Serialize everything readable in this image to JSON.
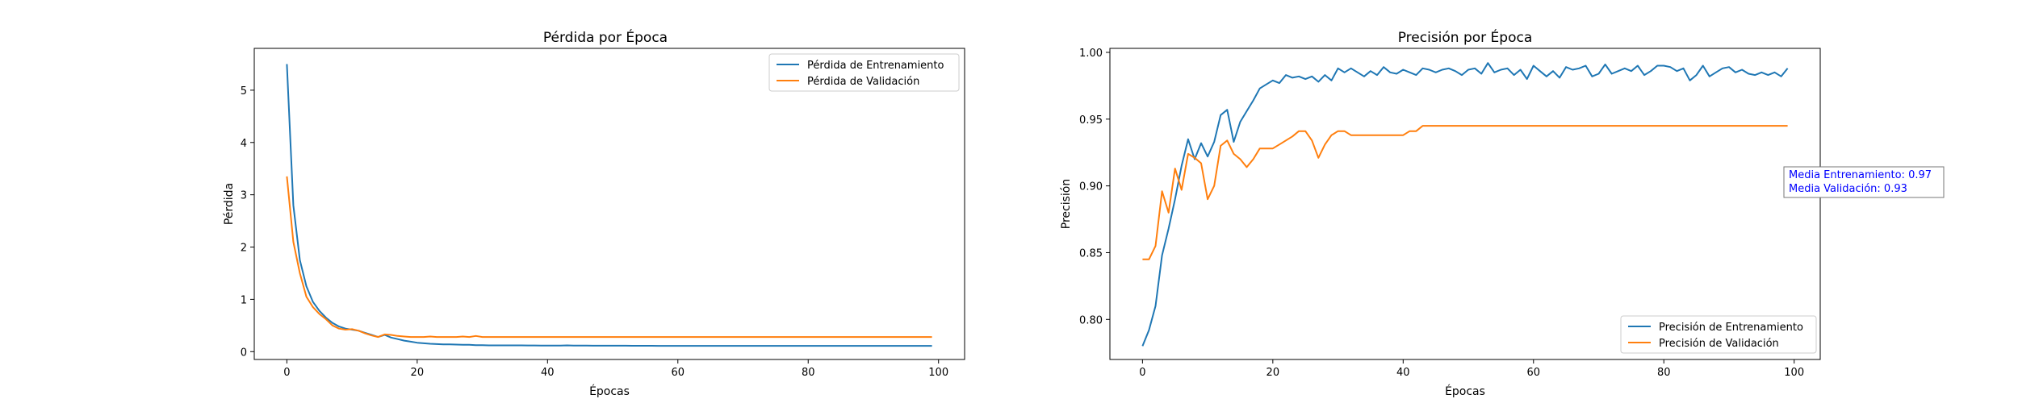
{
  "chart_data": [
    {
      "type": "line",
      "title": "Pérdida por Época",
      "xlabel": "Épocas",
      "ylabel": "Pérdida",
      "xlim": [
        -5,
        104
      ],
      "ylim": [
        -0.15,
        5.8
      ],
      "xticks": [
        0,
        20,
        40,
        60,
        80,
        100
      ],
      "yticks": [
        0,
        1,
        2,
        3,
        4,
        5
      ],
      "legend_position": "top-right",
      "grid": false,
      "x": [
        0,
        1,
        2,
        3,
        4,
        5,
        6,
        7,
        8,
        9,
        10,
        11,
        12,
        13,
        14,
        15,
        16,
        17,
        18,
        19,
        20,
        21,
        22,
        23,
        24,
        25,
        26,
        27,
        28,
        29,
        30,
        31,
        32,
        33,
        34,
        35,
        36,
        37,
        38,
        39,
        40,
        41,
        42,
        43,
        44,
        45,
        46,
        47,
        48,
        49,
        50,
        51,
        52,
        53,
        54,
        55,
        56,
        57,
        58,
        59,
        60,
        61,
        62,
        63,
        64,
        65,
        66,
        67,
        68,
        69,
        70,
        71,
        72,
        73,
        74,
        75,
        76,
        77,
        78,
        79,
        80,
        81,
        82,
        83,
        84,
        85,
        86,
        87,
        88,
        89,
        90,
        91,
        92,
        93,
        94,
        95,
        96,
        97,
        98,
        99
      ],
      "series": [
        {
          "name": "Pérdida de Entrenamiento",
          "color": "#1f77b4",
          "values": [
            5.5,
            2.8,
            1.75,
            1.25,
            0.95,
            0.78,
            0.65,
            0.55,
            0.48,
            0.44,
            0.42,
            0.4,
            0.36,
            0.32,
            0.28,
            0.32,
            0.27,
            0.24,
            0.21,
            0.19,
            0.17,
            0.16,
            0.15,
            0.145,
            0.14,
            0.14,
            0.135,
            0.13,
            0.13,
            0.125,
            0.125,
            0.12,
            0.12,
            0.12,
            0.12,
            0.12,
            0.12,
            0.118,
            0.118,
            0.117,
            0.117,
            0.116,
            0.115,
            0.12,
            0.115,
            0.115,
            0.115,
            0.114,
            0.114,
            0.114,
            0.113,
            0.113,
            0.113,
            0.112,
            0.112,
            0.112,
            0.112,
            0.111,
            0.111,
            0.11,
            0.11,
            0.11,
            0.11,
            0.11,
            0.11,
            0.11,
            0.11,
            0.11,
            0.11,
            0.11,
            0.11,
            0.11,
            0.11,
            0.11,
            0.11,
            0.11,
            0.11,
            0.11,
            0.11,
            0.11,
            0.11,
            0.11,
            0.11,
            0.11,
            0.11,
            0.11,
            0.11,
            0.11,
            0.11,
            0.11,
            0.11,
            0.11,
            0.11,
            0.11,
            0.11,
            0.11,
            0.11,
            0.11,
            0.11,
            0.11
          ]
        },
        {
          "name": "Pérdida de Validación",
          "color": "#ff7f0e",
          "values": [
            3.35,
            2.1,
            1.5,
            1.05,
            0.85,
            0.72,
            0.62,
            0.5,
            0.44,
            0.42,
            0.43,
            0.4,
            0.35,
            0.31,
            0.28,
            0.33,
            0.32,
            0.3,
            0.29,
            0.28,
            0.28,
            0.28,
            0.29,
            0.28,
            0.28,
            0.28,
            0.28,
            0.29,
            0.28,
            0.3,
            0.28,
            0.28,
            0.28,
            0.28,
            0.28,
            0.28,
            0.28,
            0.28,
            0.28,
            0.28,
            0.28,
            0.28,
            0.28,
            0.28,
            0.28,
            0.28,
            0.28,
            0.28,
            0.28,
            0.28,
            0.28,
            0.28,
            0.28,
            0.28,
            0.28,
            0.28,
            0.28,
            0.28,
            0.28,
            0.28,
            0.28,
            0.28,
            0.28,
            0.28,
            0.28,
            0.28,
            0.28,
            0.28,
            0.28,
            0.28,
            0.28,
            0.28,
            0.28,
            0.28,
            0.28,
            0.28,
            0.28,
            0.28,
            0.28,
            0.28,
            0.28,
            0.28,
            0.28,
            0.28,
            0.28,
            0.28,
            0.28,
            0.28,
            0.28,
            0.28,
            0.28,
            0.28,
            0.28,
            0.28,
            0.28,
            0.28,
            0.28,
            0.28,
            0.28,
            0.28
          ]
        }
      ]
    },
    {
      "type": "line",
      "title": "Precisión por Época",
      "xlabel": "Épocas",
      "ylabel": "Precisión",
      "xlim": [
        -5,
        104
      ],
      "ylim": [
        0.77,
        1.003
      ],
      "xticks": [
        0,
        20,
        40,
        60,
        80,
        100
      ],
      "yticks": [
        0.8,
        0.85,
        0.9,
        0.95,
        1.0
      ],
      "ytick_labels": [
        "0.80",
        "0.85",
        "0.90",
        "0.95",
        "1.00"
      ],
      "legend_position": "bottom-right",
      "grid": false,
      "x": [
        0,
        1,
        2,
        3,
        4,
        5,
        6,
        7,
        8,
        9,
        10,
        11,
        12,
        13,
        14,
        15,
        16,
        17,
        18,
        19,
        20,
        21,
        22,
        23,
        24,
        25,
        26,
        27,
        28,
        29,
        30,
        31,
        32,
        33,
        34,
        35,
        36,
        37,
        38,
        39,
        40,
        41,
        42,
        43,
        44,
        45,
        46,
        47,
        48,
        49,
        50,
        51,
        52,
        53,
        54,
        55,
        56,
        57,
        58,
        59,
        60,
        61,
        62,
        63,
        64,
        65,
        66,
        67,
        68,
        69,
        70,
        71,
        72,
        73,
        74,
        75,
        76,
        77,
        78,
        79,
        80,
        81,
        82,
        83,
        84,
        85,
        86,
        87,
        88,
        89,
        90,
        91,
        92,
        93,
        94,
        95,
        96,
        97,
        98,
        99
      ],
      "series": [
        {
          "name": "Precisión de Entrenamiento",
          "color": "#1f77b4",
          "values": [
            0.78,
            0.792,
            0.81,
            0.848,
            0.868,
            0.89,
            0.915,
            0.935,
            0.92,
            0.932,
            0.922,
            0.933,
            0.953,
            0.957,
            0.933,
            0.948,
            0.956,
            0.964,
            0.973,
            0.976,
            0.979,
            0.977,
            0.983,
            0.981,
            0.982,
            0.98,
            0.982,
            0.978,
            0.983,
            0.979,
            0.988,
            0.985,
            0.988,
            0.985,
            0.982,
            0.986,
            0.983,
            0.989,
            0.985,
            0.984,
            0.987,
            0.985,
            0.983,
            0.988,
            0.987,
            0.985,
            0.987,
            0.988,
            0.986,
            0.983,
            0.987,
            0.988,
            0.984,
            0.992,
            0.985,
            0.987,
            0.988,
            0.983,
            0.987,
            0.98,
            0.99,
            0.986,
            0.982,
            0.986,
            0.981,
            0.989,
            0.987,
            0.988,
            0.99,
            0.982,
            0.984,
            0.991,
            0.984,
            0.986,
            0.988,
            0.986,
            0.99,
            0.983,
            0.986,
            0.99,
            0.99,
            0.989,
            0.986,
            0.988,
            0.979,
            0.983,
            0.99,
            0.982,
            0.985,
            0.988,
            0.989,
            0.985,
            0.987,
            0.984,
            0.983,
            0.985,
            0.983,
            0.985,
            0.982,
            0.988
          ]
        },
        {
          "name": "Precisión de Validación",
          "color": "#ff7f0e",
          "values": [
            0.845,
            0.845,
            0.855,
            0.896,
            0.88,
            0.913,
            0.897,
            0.924,
            0.921,
            0.917,
            0.89,
            0.9,
            0.93,
            0.934,
            0.924,
            0.92,
            0.914,
            0.92,
            0.928,
            0.928,
            0.928,
            0.931,
            0.934,
            0.937,
            0.941,
            0.941,
            0.934,
            0.921,
            0.931,
            0.938,
            0.941,
            0.941,
            0.938,
            0.938,
            0.938,
            0.938,
            0.938,
            0.938,
            0.938,
            0.938,
            0.938,
            0.941,
            0.941,
            0.945,
            0.945,
            0.945,
            0.945,
            0.945,
            0.945,
            0.945,
            0.945,
            0.945,
            0.945,
            0.945,
            0.945,
            0.945,
            0.945,
            0.945,
            0.945,
            0.945,
            0.945,
            0.945,
            0.945,
            0.945,
            0.945,
            0.945,
            0.945,
            0.945,
            0.945,
            0.945,
            0.945,
            0.945,
            0.945,
            0.945,
            0.945,
            0.945,
            0.945,
            0.945,
            0.945,
            0.945,
            0.945,
            0.945,
            0.945,
            0.945,
            0.945,
            0.945,
            0.945,
            0.945,
            0.945,
            0.945,
            0.945,
            0.945,
            0.945,
            0.945,
            0.945,
            0.945,
            0.945,
            0.945,
            0.945,
            0.945
          ]
        }
      ],
      "annotation": {
        "lines": [
          "Media Entrenamiento: 0.97",
          "Media Validación: 0.93"
        ],
        "color": "#0000ff"
      }
    }
  ]
}
